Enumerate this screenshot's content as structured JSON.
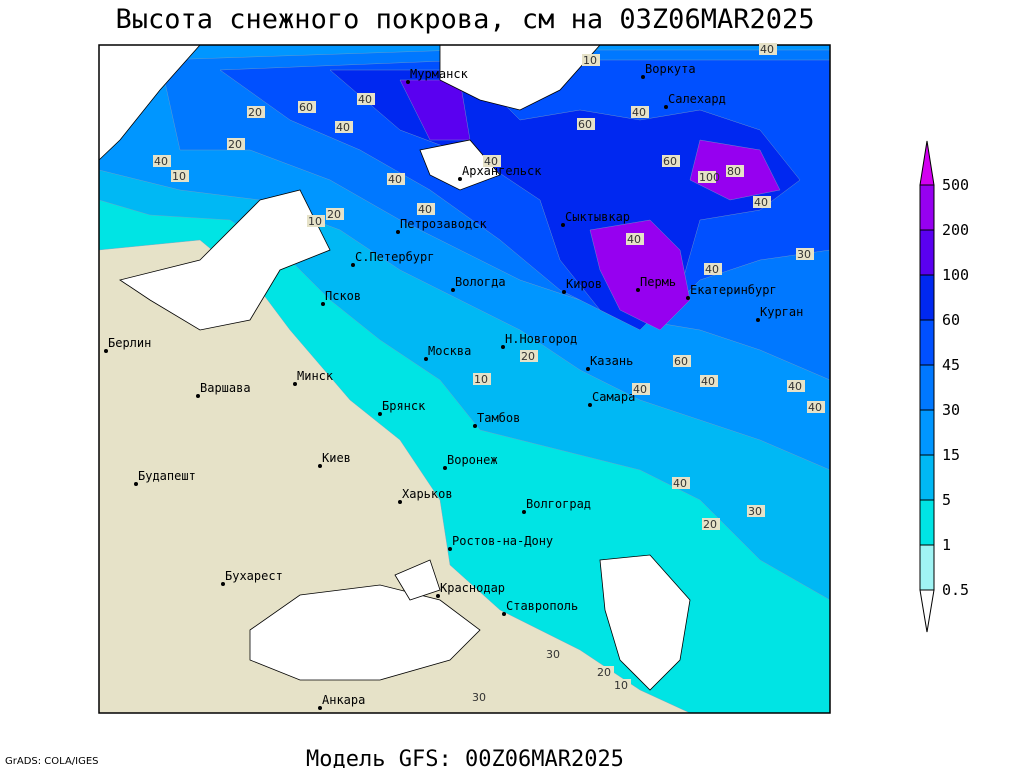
{
  "title": "Высота снежного покрова, см на 03Z06MAR2025",
  "subtitle": "Модель GFS: 00Z06MAR2025",
  "credit": "GrADS: COLA/IGES",
  "legend": {
    "levels": [
      0.5,
      1,
      5,
      15,
      30,
      45,
      60,
      100,
      200,
      500
    ],
    "colors": [
      "#ffffff",
      "#a0f4f4",
      "#00e4e4",
      "#00b8f4",
      "#0096ff",
      "#0078ff",
      "#0050ff",
      "#0028f0",
      "#5a00f0",
      "#9600f0",
      "#d200f0"
    ]
  },
  "cities": [
    "Мурманск",
    "Воркута",
    "Салехард",
    "Архангельск",
    "Петрозаводск",
    "Сыктывкар",
    "С.Петербург",
    "Вологда",
    "Киров",
    "Пермь",
    "Екатеринбург",
    "Курган",
    "Псков",
    "Н.Новгород",
    "Москва",
    "Казань",
    "Берлин",
    "Варшава",
    "Минск",
    "Брянск",
    "Тамбов",
    "Самара",
    "Киев",
    "Воронеж",
    "Харьков",
    "Будапешт",
    "Волгоград",
    "Ростов-на-Дону",
    "Бухарест",
    "Краснодар",
    "Ставрополь",
    "Анкара"
  ],
  "contour_labels": [
    10,
    40,
    40,
    60,
    40,
    40,
    20,
    40,
    10,
    20,
    60,
    40,
    40,
    20,
    10,
    40,
    40,
    40,
    30,
    60,
    40,
    40,
    40,
    20,
    10,
    40,
    40,
    20,
    30,
    30,
    10,
    20,
    30,
    80,
    100,
    60,
    40
  ]
}
